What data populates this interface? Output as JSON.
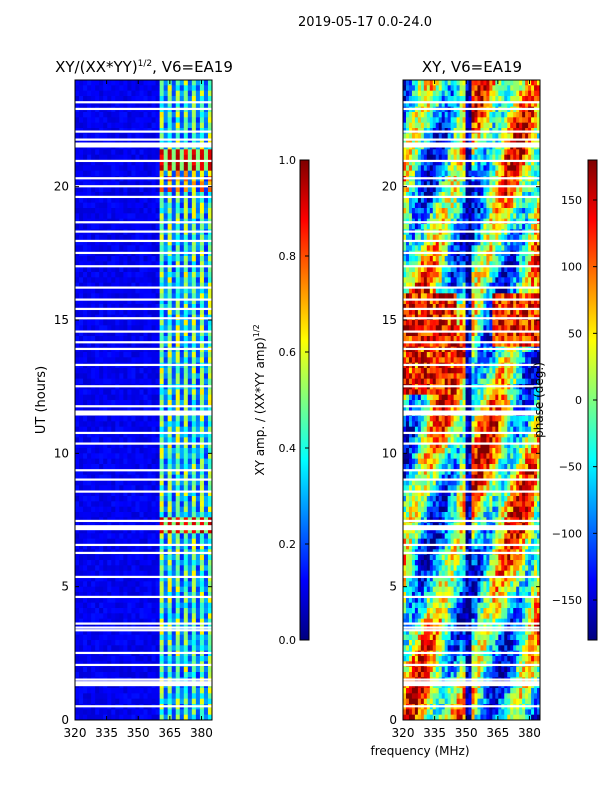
{
  "suptitle": "2019-05-17 0.0-24.0",
  "shared_xlabel": "frequency (MHz)",
  "colors": {
    "jet": [
      "#00007f",
      "#0000ff",
      "#007fff",
      "#00ffff",
      "#7fff7f",
      "#ffff00",
      "#ff7f00",
      "#ff0000",
      "#7f0000"
    ],
    "gap": "#ffffff"
  },
  "chart_data": [
    {
      "type": "heatmap",
      "title_main": "XY/(XX*YY)",
      "title_sup": "1/2",
      "title_rest": ", V6=EA19",
      "xlabel": "",
      "ylabel": "UT (hours)",
      "xlim": [
        320,
        385
      ],
      "ylim": [
        0,
        24
      ],
      "xticks": [
        "320",
        "335",
        "350",
        "365",
        "380"
      ],
      "xtick_values": [
        320,
        335,
        350,
        365,
        380
      ],
      "yticks": [
        "0",
        "5",
        "10",
        "15",
        "20"
      ],
      "ytick_values": [
        0,
        5,
        10,
        15,
        20
      ],
      "colorbar": {
        "label_main": "XY amp. / (XX*YY amp)",
        "label_sup": "1/2",
        "range": [
          0.0,
          1.0
        ],
        "ticks": [
          "0.0",
          "0.2",
          "0.4",
          "0.6",
          "0.8",
          "1.0"
        ],
        "tick_values": [
          0.0,
          0.2,
          0.4,
          0.6,
          0.8,
          1.0
        ]
      }
    },
    {
      "type": "heatmap",
      "title_main": "XY, V6=EA19",
      "title_sup": "",
      "title_rest": "",
      "xlabel": "",
      "ylabel": "",
      "xlim": [
        320,
        385
      ],
      "ylim": [
        0,
        24
      ],
      "xticks": [
        "320",
        "335",
        "350",
        "365",
        "380"
      ],
      "xtick_values": [
        320,
        335,
        350,
        365,
        380
      ],
      "yticks": [
        "0",
        "5",
        "10",
        "15",
        "20"
      ],
      "ytick_values": [
        0,
        5,
        10,
        15,
        20
      ],
      "colorbar": {
        "label_main": "phase (deg.)",
        "label_sup": "",
        "range": [
          -180,
          180
        ],
        "ticks": [
          "−150",
          "−100",
          "−50",
          "0",
          "50",
          "100",
          "150"
        ],
        "tick_values": [
          -150,
          -100,
          -50,
          0,
          50,
          100,
          150
        ]
      }
    }
  ]
}
